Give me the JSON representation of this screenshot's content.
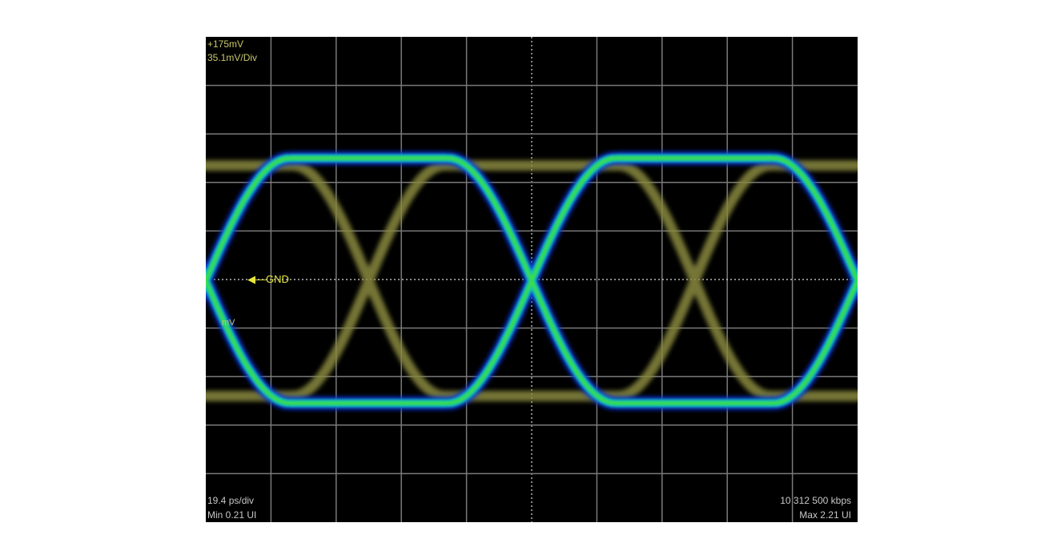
{
  "chart_data": {
    "type": "line",
    "title": "",
    "readouts": {
      "offset": "+175mV",
      "vertical_scale": "35.1mV/Div",
      "time_scale": "19.4 ps/div",
      "data_rate": "10 312 500 kbps",
      "min_ui": "Min 0.21 UI",
      "max_ui": "Max 2.21 UI",
      "ground_marker": "GND",
      "ground_unit": "mV"
    },
    "grid": {
      "on": true,
      "x_divisions": 10,
      "y_divisions": 10
    },
    "xlim_ui": [
      0.21,
      2.21
    ],
    "series": [
      {
        "crossings_ui": [
          0.21,
          1.21,
          2.21
        ],
        "top_level_div": 2.5,
        "bottom_level_div": -2.55,
        "colors": [
          "#1030d0",
          "#10c0c0",
          "#40e040",
          "#e0e020",
          "#e02010"
        ]
      },
      {
        "crossings_ui": [
          0.71,
          1.71
        ],
        "top_level_div": 2.35,
        "bottom_level_div": -2.4,
        "colors": [
          "#8a8a40"
        ]
      }
    ],
    "colors": {
      "background": "#000000",
      "grid": "#808080",
      "label_yellow": "#c9c86a",
      "label_gray": "#c8c8c8"
    }
  }
}
